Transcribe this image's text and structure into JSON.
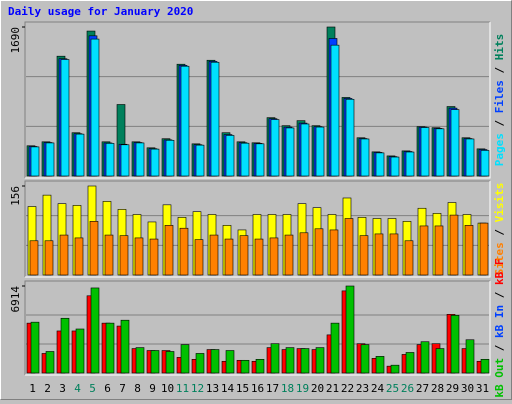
{
  "chart_data": [
    {
      "type": "bar",
      "title": "Daily usage for January 2020",
      "ylim": [
        0,
        1690
      ],
      "yticks": [
        1690
      ],
      "legend_separator": "/",
      "series": [
        {
          "name": "Hits",
          "color": "#00805c",
          "values": [
            343,
            388,
            1359,
            491,
            1644,
            388,
            811,
            388,
            320,
            423,
            1268,
            365,
            1313,
            491,
            388,
            377,
            662,
            571,
            628,
            571,
            1690,
            891,
            434,
            274,
            228,
            285,
            560,
            548,
            788,
            434,
            308
          ]
        },
        {
          "name": "Files",
          "color": "#0040ff",
          "values": [
            335,
            380,
            1330,
            480,
            1590,
            375,
            360,
            380,
            310,
            410,
            1255,
            355,
            1300,
            470,
            378,
            370,
            650,
            555,
            600,
            560,
            1560,
            880,
            425,
            268,
            220,
            278,
            555,
            540,
            770,
            425,
            300
          ]
        },
        {
          "name": "Pages",
          "color": "#00e0ff",
          "values": [
            330,
            375,
            1321,
            475,
            1553,
            370,
            354,
            375,
            305,
            405,
            1245,
            350,
            1290,
            460,
            372,
            365,
            640,
            545,
            590,
            555,
            1484,
            870,
            420,
            262,
            215,
            272,
            550,
            535,
            753,
            420,
            290
          ]
        }
      ]
    },
    {
      "type": "bar",
      "ylim": [
        0,
        156
      ],
      "yticks": [
        156
      ],
      "legend_separator": "/",
      "series": [
        {
          "name": "Visits",
          "color": "#ffff00",
          "values": [
            120,
            140,
            125,
            122,
            156,
            129,
            115,
            106,
            93,
            123,
            101,
            111,
            106,
            87,
            79,
            106,
            106,
            106,
            125,
            118,
            106,
            135,
            101,
            99,
            99,
            94,
            117,
            108,
            127,
            106,
            91
          ]
        },
        {
          "name": "Sites",
          "color": "#ff8000",
          "values": [
            60,
            60,
            70,
            65,
            94,
            70,
            69,
            65,
            63,
            87,
            82,
            62,
            70,
            63,
            69,
            63,
            65,
            70,
            74,
            81,
            79,
            99,
            69,
            72,
            72,
            60,
            86,
            86,
            105,
            87,
            91
          ]
        }
      ]
    },
    {
      "type": "bar",
      "ylim": [
        0,
        6914
      ],
      "yticks": [
        6914
      ],
      "legend_separator": "/",
      "categories": [
        "1",
        "2",
        "3",
        "4",
        "5",
        "6",
        "7",
        "8",
        "9",
        "10",
        "11",
        "12",
        "13",
        "14",
        "15",
        "16",
        "17",
        "18",
        "19",
        "20",
        "21",
        "22",
        "23",
        "24",
        "25",
        "26",
        "27",
        "28",
        "29",
        "30",
        "31"
      ],
      "category_colors": [
        "#000000",
        "#000000",
        "#000000",
        "#00805c",
        "#00805c",
        "#000000",
        "#000000",
        "#000000",
        "#000000",
        "#000000",
        "#00805c",
        "#00805c",
        "#000000",
        "#000000",
        "#000000",
        "#000000",
        "#000000",
        "#00805c",
        "#00805c",
        "#000000",
        "#000000",
        "#000000",
        "#000000",
        "#000000",
        "#00805c",
        "#00805c",
        "#000000",
        "#000000",
        "#000000",
        "#000000",
        "#000000"
      ],
      "series": [
        {
          "name": "kB F",
          "color": "#ff0000",
          "values": [
            3963,
            1554,
            3341,
            3341,
            6137,
            3963,
            3730,
            1943,
            1787,
            1787,
            1243,
            1088,
            1865,
            932,
            1010,
            932,
            2020,
            1865,
            1943,
            1865,
            3030,
            6526,
            2331,
            1165,
            544,
            1476,
            2253,
            2331,
            4662,
            1943,
            932
          ]
        },
        {
          "name": "kB In",
          "color": "#0040ff",
          "values": [
            0,
            0,
            0,
            0,
            0,
            0,
            0,
            0,
            0,
            0,
            0,
            0,
            0,
            0,
            0,
            0,
            0,
            0,
            0,
            0,
            0,
            0,
            0,
            0,
            0,
            0,
            0,
            0,
            0,
            0,
            0
          ]
        },
        {
          "name": "kB Out",
          "color": "#00c000",
          "values": [
            4040,
            1710,
            4351,
            3497,
            6759,
            3963,
            4196,
            2020,
            1787,
            1710,
            2253,
            1554,
            1865,
            1787,
            1010,
            1088,
            2331,
            2020,
            1943,
            2020,
            3963,
            6914,
            2253,
            1321,
            622,
            1632,
            2486,
            1943,
            4584,
            2642,
            1088
          ]
        }
      ]
    }
  ]
}
